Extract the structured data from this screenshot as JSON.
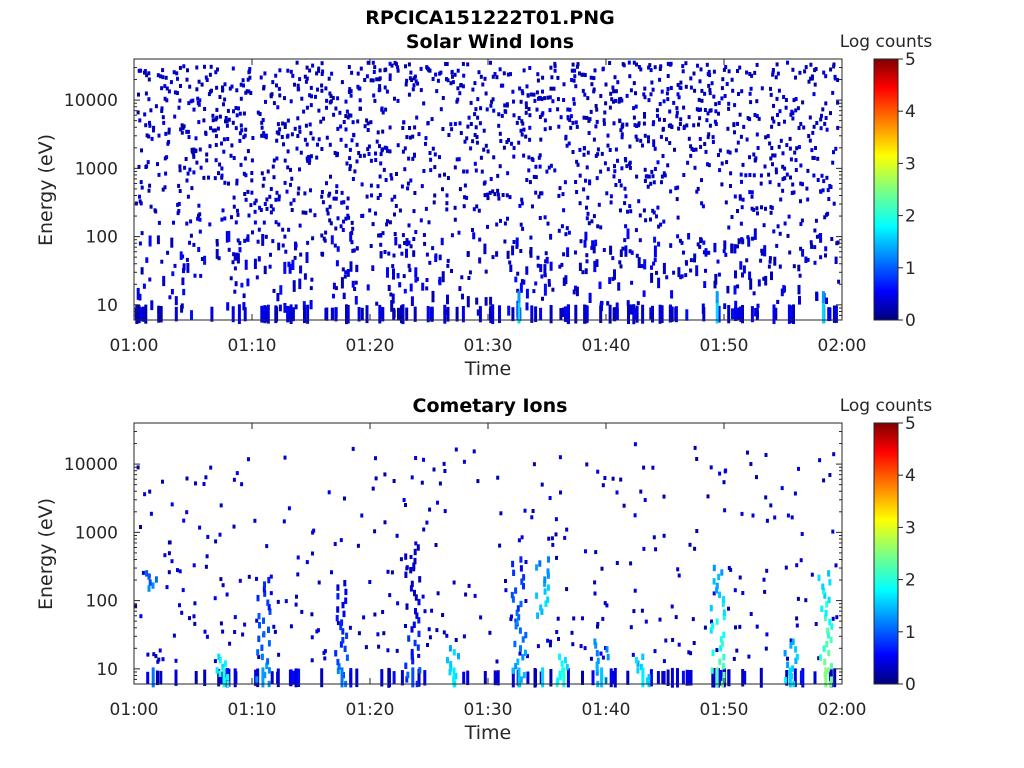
{
  "figure_title": "RPCICA151222T01.PNG",
  "chart_data": [
    {
      "type": "heatmap",
      "title": "Solar Wind Ions",
      "xlabel": "Time",
      "ylabel": "Energy (eV)",
      "x_range": [
        "01:00",
        "02:00"
      ],
      "x_ticks": [
        "01:00",
        "01:10",
        "01:20",
        "01:30",
        "01:40",
        "01:50",
        "02:00"
      ],
      "y_scale": "log",
      "y_range": [
        6,
        40000
      ],
      "y_ticks": [
        "10",
        "100",
        "1000",
        "10000"
      ],
      "colorbar": {
        "label": "Log counts",
        "range": [
          0,
          5
        ],
        "ticks": [
          "0",
          "1",
          "2",
          "3",
          "4",
          "5"
        ],
        "colormap": "jet"
      },
      "description_values": {
        "typical_log_counts": 0.1,
        "energy_spread_eV": [
          6,
          40000
        ],
        "brighter_low_energy_times": [
          "01:32",
          "01:49",
          "01:58"
        ]
      }
    },
    {
      "type": "heatmap",
      "title": "Cometary Ions",
      "xlabel": "Time",
      "ylabel": "Energy (eV)",
      "x_range": [
        "01:00",
        "02:00"
      ],
      "x_ticks": [
        "01:00",
        "01:10",
        "01:20",
        "01:30",
        "01:40",
        "01:50",
        "02:00"
      ],
      "y_scale": "log",
      "y_range": [
        6,
        40000
      ],
      "y_ticks": [
        "10",
        "100",
        "1000",
        "10000"
      ],
      "colorbar": {
        "label": "Log counts",
        "range": [
          0,
          5
        ],
        "ticks": [
          "0",
          "1",
          "2",
          "3",
          "4",
          "5"
        ],
        "colormap": "jet"
      },
      "bursts": [
        {
          "time_min": 1.5,
          "e_low": 150,
          "e_high": 250,
          "level": 1.2
        },
        {
          "time_min": 7.5,
          "e_low": 6,
          "e_high": 15,
          "level": 2.0
        },
        {
          "time_min": 10.8,
          "e_low": 6,
          "e_high": 200,
          "level": 1.4
        },
        {
          "time_min": 17.5,
          "e_low": 6,
          "e_high": 180,
          "level": 1.2
        },
        {
          "time_min": 23.5,
          "e_low": 6,
          "e_high": 600,
          "level": 1.0
        },
        {
          "time_min": 27.0,
          "e_low": 6,
          "e_high": 20,
          "level": 1.8
        },
        {
          "time_min": 32.5,
          "e_low": 6,
          "e_high": 400,
          "level": 1.6
        },
        {
          "time_min": 34.5,
          "e_low": 60,
          "e_high": 400,
          "level": 1.7
        },
        {
          "time_min": 36.3,
          "e_low": 6,
          "e_high": 15,
          "level": 2.0
        },
        {
          "time_min": 39.5,
          "e_low": 6,
          "e_high": 25,
          "level": 1.6
        },
        {
          "time_min": 43.0,
          "e_low": 6,
          "e_high": 15,
          "level": 1.8
        },
        {
          "time_min": 49.3,
          "e_low": 6,
          "e_high": 300,
          "level": 2.3
        },
        {
          "time_min": 55.5,
          "e_low": 6,
          "e_high": 25,
          "level": 1.7
        },
        {
          "time_min": 58.5,
          "e_low": 6,
          "e_high": 250,
          "level": 2.5
        }
      ]
    }
  ]
}
